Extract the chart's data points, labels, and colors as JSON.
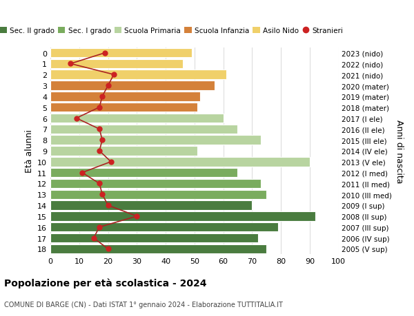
{
  "ages": [
    18,
    17,
    16,
    15,
    14,
    13,
    12,
    11,
    10,
    9,
    8,
    7,
    6,
    5,
    4,
    3,
    2,
    1,
    0
  ],
  "right_labels": [
    "2005 (V sup)",
    "2006 (IV sup)",
    "2007 (III sup)",
    "2008 (II sup)",
    "2009 (I sup)",
    "2010 (III med)",
    "2011 (II med)",
    "2012 (I med)",
    "2013 (V ele)",
    "2014 (IV ele)",
    "2015 (III ele)",
    "2016 (II ele)",
    "2017 (I ele)",
    "2018 (mater)",
    "2019 (mater)",
    "2020 (mater)",
    "2021 (nido)",
    "2022 (nido)",
    "2023 (nido)"
  ],
  "bar_values": [
    75,
    72,
    79,
    92,
    70,
    75,
    73,
    65,
    90,
    51,
    73,
    65,
    60,
    51,
    52,
    57,
    61,
    46,
    49
  ],
  "bar_colors": [
    "#4a7c3f",
    "#4a7c3f",
    "#4a7c3f",
    "#4a7c3f",
    "#4a7c3f",
    "#7aac5e",
    "#7aac5e",
    "#7aac5e",
    "#b8d4a0",
    "#b8d4a0",
    "#b8d4a0",
    "#b8d4a0",
    "#b8d4a0",
    "#d4813a",
    "#d4813a",
    "#d4813a",
    "#f0d06a",
    "#f0d06a",
    "#f0d06a"
  ],
  "stranieri_values": [
    20,
    15,
    17,
    30,
    20,
    18,
    17,
    11,
    21,
    17,
    18,
    17,
    9,
    17,
    18,
    20,
    22,
    7,
    19
  ],
  "xlim": [
    0,
    100
  ],
  "ylabel_left": "Età alunni",
  "ylabel_right": "Anni di nascita",
  "title_bold": "Popolazione per età scolastica - 2024",
  "subtitle": "COMUNE DI BARGE (CN) - Dati ISTAT 1° gennaio 2024 - Elaborazione TUTTITALIA.IT",
  "legend_items": [
    {
      "label": "Sec. II grado",
      "color": "#4a7c3f"
    },
    {
      "label": "Sec. I grado",
      "color": "#7aac5e"
    },
    {
      "label": "Scuola Primaria",
      "color": "#b8d4a0"
    },
    {
      "label": "Scuola Infanzia",
      "color": "#d4813a"
    },
    {
      "label": "Asilo Nido",
      "color": "#f0d06a"
    },
    {
      "label": "Stranieri",
      "color": "#cc2222"
    }
  ],
  "grid_color": "#dddddd",
  "bar_edge_color": "white",
  "stranieri_line_color": "#aa2222",
  "stranieri_dot_color": "#cc2222",
  "background_color": "#ffffff"
}
